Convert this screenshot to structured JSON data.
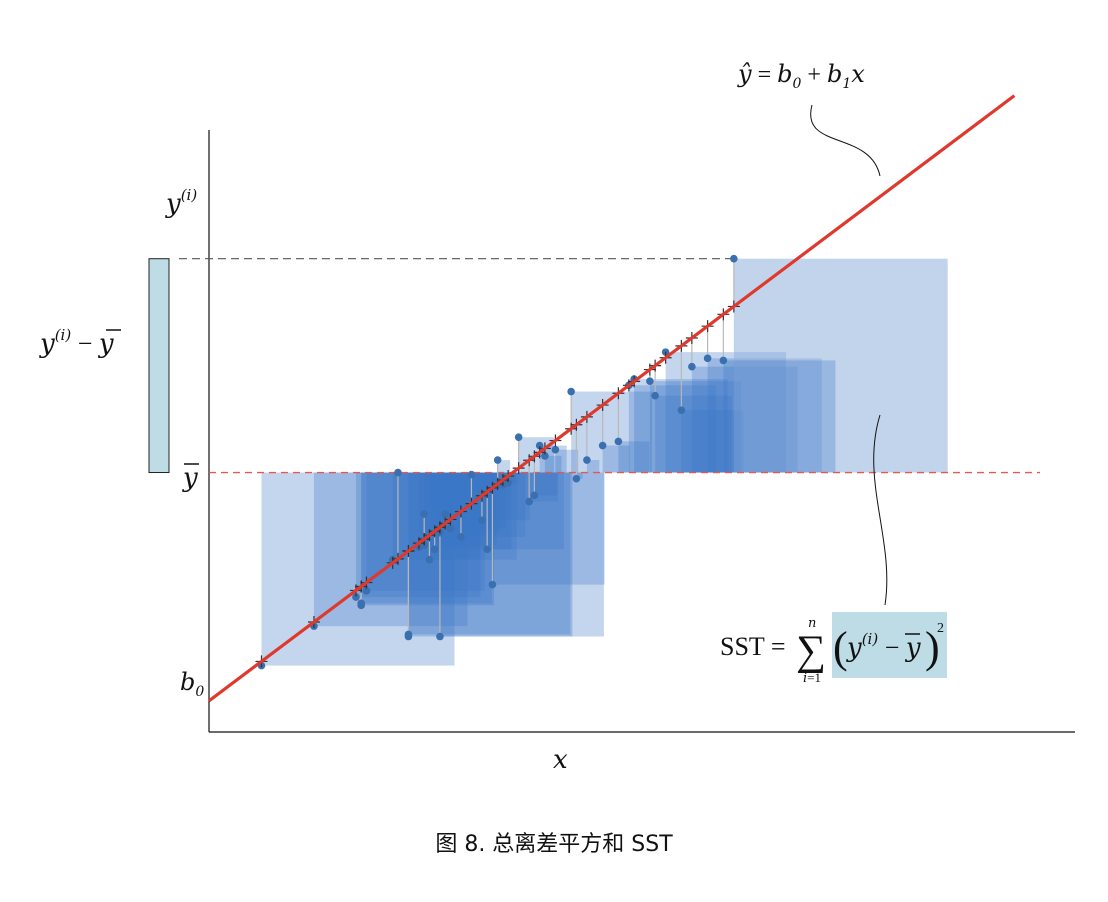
{
  "labels": {
    "regression_eq": "ŷ = b0 + b1x",
    "yi": "y(i)",
    "deviation": "y(i) − ȳ",
    "ybar": "ȳ",
    "b0": "b0",
    "x": "x",
    "sst": "SST = Σ_{i=1}^{n} (y(i) − ȳ)²"
  },
  "caption": "图 8. 总离差平方和 SST",
  "colors": {
    "regression_line": "#e0382c",
    "mean_line": "#e05a50",
    "squares": "#3c78c8",
    "points": "#3a6fb0",
    "deviation_box": "#bddce6",
    "axes": "#111111"
  },
  "chart_data": {
    "type": "scatter",
    "x": [
      1.0,
      2.0,
      2.8,
      2.9,
      3.0,
      3.5,
      3.8,
      4.0,
      4.1,
      4.2,
      4.3,
      4.4,
      4.5,
      4.6,
      4.8,
      5.0,
      5.2,
      5.3,
      5.5,
      5.7,
      5.9,
      6.1,
      6.3,
      6.6,
      6.9,
      7.2,
      7.5,
      7.8,
      8.1,
      8.4,
      8.7,
      9.0,
      9.2,
      9.5,
      10.0,
      2.9,
      3.6,
      3.8,
      4.1,
      4.4,
      5.4,
      5.6,
      6.2,
      6.4,
      7.0,
      8.0,
      8.5,
      9.8
    ],
    "y": [
      3.2,
      5.1,
      6.5,
      6.2,
      6.8,
      8.3,
      4.7,
      8.9,
      9.0,
      8.3,
      8.8,
      9.6,
      10.5,
      9.8,
      9.4,
      12.4,
      10.2,
      8.8,
      13.1,
      12.0,
      14.2,
      11.1,
      13.8,
      13.6,
      16.4,
      13.1,
      13.8,
      14.0,
      17.0,
      16.9,
      18.3,
      15.5,
      17.6,
      18.0,
      22.8,
      6.1,
      12.5,
      4.6,
      10.5,
      4.6,
      7.1,
      11.9,
      11.4,
      13.3,
      12.2,
      16.7,
      16.2,
      17.9
    ],
    "regression": {
      "intercept": 1.5,
      "slope": 1.9
    },
    "ybar": 12.5,
    "highlighted_point_index": 34,
    "xlim": [
      0,
      16.5
    ],
    "ylim": [
      0,
      29
    ]
  }
}
